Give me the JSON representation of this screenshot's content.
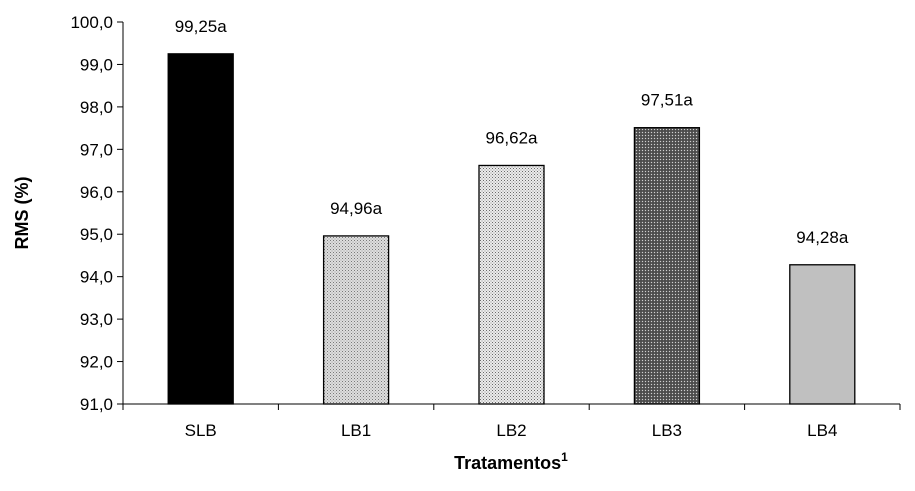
{
  "chart_data": {
    "type": "bar",
    "categories": [
      "SLB",
      "LB1",
      "LB2",
      "LB3",
      "LB4"
    ],
    "values": [
      99.25,
      94.96,
      96.62,
      97.51,
      94.28
    ],
    "data_labels": [
      "99,25a",
      "94,96a",
      "96,62a",
      "97,51a",
      "94,28a"
    ],
    "y_tick_labels": [
      "91,0",
      "92,0",
      "93,0",
      "94,0",
      "95,0",
      "96,0",
      "97,0",
      "98,0",
      "99,0",
      "100,0"
    ],
    "ylim": [
      91,
      100
    ],
    "ylabel": "RMS (%)",
    "xlabel": "Tratamentos",
    "xlabel_superscript": "1",
    "grid": false,
    "bar_fills": [
      "solid-black",
      "light-dots",
      "fine-dots",
      "dark-dots",
      "solid-gray"
    ]
  }
}
